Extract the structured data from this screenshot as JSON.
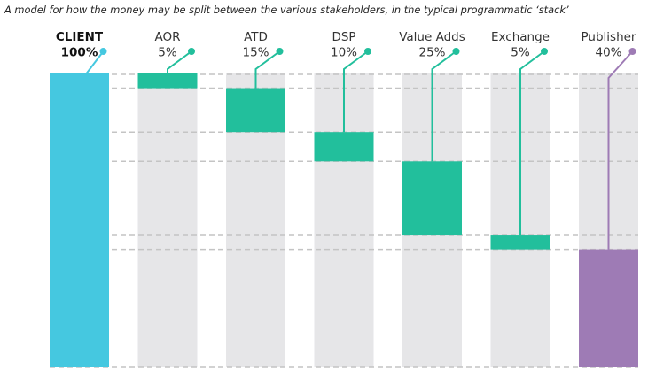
{
  "subtitle": "A model for how the money may be split between the various stakeholders, in the typical programmatic ‘stack’",
  "colors": {
    "client": "#45c8e0",
    "segment": "#22bf9c",
    "publisher": "#9e7bb5",
    "column_bg": "#e6e6e8",
    "dash": "#c4c4c4"
  },
  "chart_data": {
    "type": "bar",
    "subtype": "waterfall",
    "title": "A model for how the money may be split between the various stakeholders, in the typical programmatic ‘stack’",
    "categories": [
      "CLIENT",
      "AOR",
      "ATD",
      "DSP",
      "Value Adds",
      "Exchange",
      "Publisher"
    ],
    "value_labels": [
      "100%",
      "5%",
      "15%",
      "10%",
      "25%",
      "5%",
      "40%"
    ],
    "values": [
      100,
      5,
      15,
      10,
      25,
      5,
      40
    ],
    "unit": "%",
    "total": 100,
    "ylim": [
      0,
      100
    ],
    "grid": false,
    "legend": "none"
  }
}
